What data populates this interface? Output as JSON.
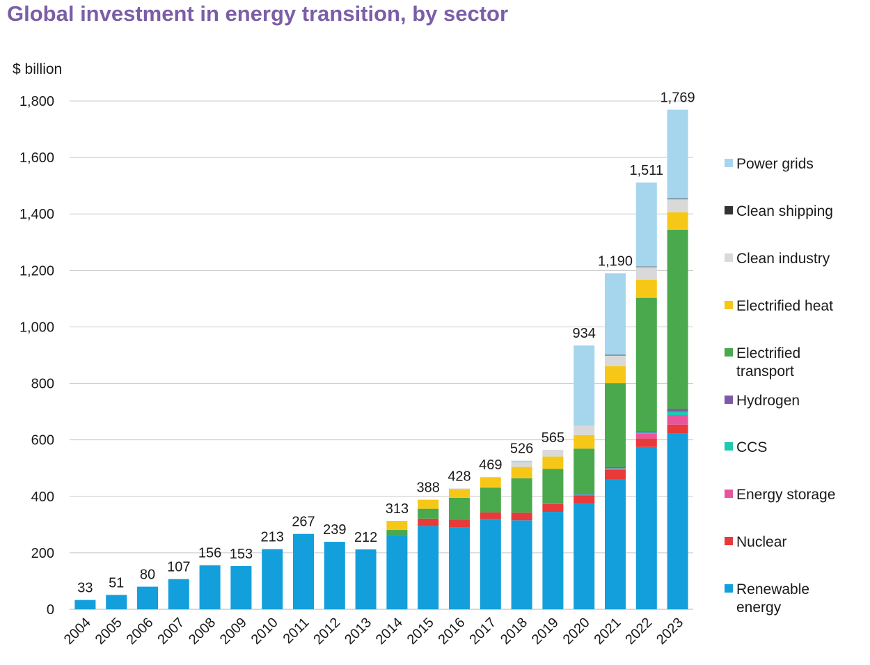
{
  "title": "Global investment in energy transition, by sector",
  "chart_data": {
    "type": "bar",
    "stacked": true,
    "title": "Global investment in energy transition, by sector",
    "ylabel": "$ billion",
    "xlabel": "",
    "ylim": [
      0,
      1800
    ],
    "yticks": [
      0,
      200,
      400,
      600,
      800,
      1000,
      1200,
      1400,
      1600,
      1800
    ],
    "ytick_labels": [
      "0",
      "200",
      "400",
      "600",
      "800",
      "1,000",
      "1,200",
      "1,400",
      "1,600",
      "1,800"
    ],
    "grid": "horizontal",
    "legend_position": "right",
    "categories": [
      "2004",
      "2005",
      "2006",
      "2007",
      "2008",
      "2009",
      "2010",
      "2011",
      "2012",
      "2013",
      "2014",
      "2015",
      "2016",
      "2017",
      "2018",
      "2019",
      "2020",
      "2021",
      "2022",
      "2023"
    ],
    "totals": [
      33,
      51,
      80,
      107,
      156,
      153,
      213,
      267,
      239,
      212,
      313,
      388,
      428,
      469,
      526,
      565,
      934,
      1190,
      1511,
      1769
    ],
    "total_labels": [
      "33",
      "51",
      "80",
      "107",
      "156",
      "153",
      "213",
      "267",
      "239",
      "212",
      "313",
      "388",
      "428",
      "469",
      "526",
      "565",
      "934",
      "1,190",
      "1,511",
      "1,769"
    ],
    "series": [
      {
        "name": "Renewable energy",
        "color": "#129fdb",
        "values": [
          33,
          51,
          80,
          107,
          156,
          153,
          213,
          267,
          239,
          212,
          263,
          295,
          290,
          320,
          315,
          345,
          373,
          460,
          575,
          622
        ]
      },
      {
        "name": "Nuclear",
        "color": "#e8393b",
        "values": [
          0,
          0,
          0,
          0,
          0,
          0,
          0,
          0,
          0,
          0,
          0,
          26,
          27,
          23,
          27,
          28,
          30,
          34,
          30,
          32
        ]
      },
      {
        "name": "Energy storage",
        "color": "#e8559c",
        "values": [
          0,
          0,
          0,
          0,
          0,
          0,
          0,
          0,
          0,
          0,
          0,
          0,
          0,
          0,
          0,
          2,
          3,
          4,
          17,
          34
        ]
      },
      {
        "name": "CCS",
        "color": "#1ec9b0",
        "values": [
          0,
          0,
          0,
          0,
          0,
          0,
          0,
          0,
          0,
          0,
          0,
          0,
          0,
          0,
          0,
          1,
          1,
          2,
          4,
          12
        ]
      },
      {
        "name": "Hydrogen",
        "color": "#7d5aa6",
        "values": [
          0,
          0,
          0,
          0,
          0,
          0,
          0,
          0,
          0,
          0,
          0,
          0,
          0,
          0,
          0,
          1,
          2,
          4,
          5,
          10
        ]
      },
      {
        "name": "Electrified transport",
        "color": "#4aa84d",
        "values": [
          0,
          0,
          0,
          0,
          0,
          0,
          0,
          0,
          0,
          0,
          18,
          35,
          78,
          88,
          122,
          120,
          160,
          297,
          472,
          634
        ]
      },
      {
        "name": "Electrified heat",
        "color": "#f7c718",
        "values": [
          0,
          0,
          0,
          0,
          0,
          0,
          0,
          0,
          0,
          0,
          32,
          32,
          31,
          36,
          40,
          44,
          48,
          60,
          64,
          62
        ]
      },
      {
        "name": "Clean industry",
        "color": "#d9d9d9",
        "values": [
          0,
          0,
          0,
          0,
          0,
          0,
          0,
          0,
          0,
          0,
          0,
          0,
          2,
          2,
          17,
          24,
          33,
          39,
          46,
          47
        ]
      },
      {
        "name": "Clean shipping",
        "color": "#333333",
        "values": [
          0,
          0,
          0,
          0,
          0,
          0,
          0,
          0,
          0,
          0,
          0,
          0,
          0,
          0,
          0,
          0,
          0,
          1,
          1,
          1
        ]
      },
      {
        "name": "Power grids",
        "color": "#a6d5ee",
        "values": [
          0,
          0,
          0,
          0,
          0,
          0,
          0,
          0,
          0,
          0,
          0,
          0,
          0,
          0,
          5,
          0,
          284,
          289,
          297,
          315
        ]
      }
    ],
    "legend": [
      {
        "lines": [
          "Power grids"
        ],
        "color": "#a6d5ee"
      },
      {
        "lines": [
          "Clean shipping"
        ],
        "color": "#333333"
      },
      {
        "lines": [
          "Clean industry"
        ],
        "color": "#d9d9d9"
      },
      {
        "lines": [
          "Electrified heat"
        ],
        "color": "#f7c718"
      },
      {
        "lines": [
          "Electrified",
          "transport"
        ],
        "color": "#4aa84d"
      },
      {
        "lines": [
          "Hydrogen"
        ],
        "color": "#7d5aa6"
      },
      {
        "lines": [
          "CCS"
        ],
        "color": "#1ec9b0"
      },
      {
        "lines": [
          "Energy storage"
        ],
        "color": "#e8559c"
      },
      {
        "lines": [
          "Nuclear"
        ],
        "color": "#e8393b"
      },
      {
        "lines": [
          "Renewable",
          "energy"
        ],
        "color": "#129fdb"
      }
    ]
  }
}
